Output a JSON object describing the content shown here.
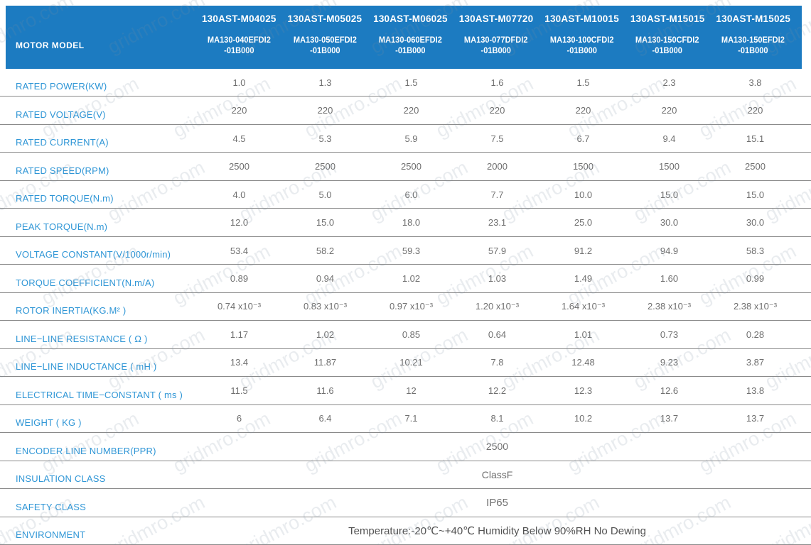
{
  "watermark": {
    "text": "gridmro.com"
  },
  "colors": {
    "header_bg": "#1c7bc1",
    "label_text": "#2f96d6",
    "value_text": "#6f6f6f",
    "grid_line": "#8a8a8a"
  },
  "header": {
    "row_label": "MOTOR MODEL",
    "columns": [
      {
        "model": "130AST-M04025",
        "code1": "MA130-040EFDI2",
        "code2": "-01B000"
      },
      {
        "model": "130AST-M05025",
        "code1": "MA130-050EFDI2",
        "code2": "-01B000"
      },
      {
        "model": "130AST-M06025",
        "code1": "MA130-060EFDI2",
        "code2": "-01B000"
      },
      {
        "model": "130AST-M07720",
        "code1": "MA130-077DFDI2",
        "code2": "-01B000"
      },
      {
        "model": "130AST-M10015",
        "code1": "MA130-100CFDI2",
        "code2": "-01B000"
      },
      {
        "model": "130AST-M15015",
        "code1": "MA130-150CFDI2",
        "code2": "-01B000"
      },
      {
        "model": "130AST-M15025",
        "code1": "MA130-150EFDI2",
        "code2": "-01B000"
      }
    ]
  },
  "rows": [
    {
      "label": "RATED POWER(KW)",
      "values": [
        "1.0",
        "1.3",
        "1.5",
        "1.6",
        "1.5",
        "2.3",
        "3.8"
      ]
    },
    {
      "label": "RATED VOLTAGE(V)",
      "values": [
        "220",
        "220",
        "220",
        "220",
        "220",
        "220",
        "220"
      ]
    },
    {
      "label": "RATED CURRENT(A)",
      "values": [
        "4.5",
        "5.3",
        "5.9",
        "7.5",
        "6.7",
        "9.4",
        "15.1"
      ]
    },
    {
      "label": "RATED SPEED(RPM)",
      "values": [
        "2500",
        "2500",
        "2500",
        "2000",
        "1500",
        "1500",
        "2500"
      ]
    },
    {
      "label": "RATED TORQUE(N.m)",
      "values": [
        "4.0",
        "5.0",
        "6.0",
        "7.7",
        "10.0",
        "15.0",
        "15.0"
      ]
    },
    {
      "label": "PEAK TORQUE(N.m)",
      "values": [
        "12.0",
        "15.0",
        "18.0",
        "23.1",
        "25.0",
        "30.0",
        "30.0"
      ]
    },
    {
      "label": "VOLTAGE CONSTANT(V/1000r/min)",
      "values": [
        "53.4",
        "58.2",
        "59.3",
        "57.9",
        "91.2",
        "94.9",
        "58.3"
      ]
    },
    {
      "label": "TORQUE COEFFICIENT(N.m/A)",
      "values": [
        "0.89",
        "0.94",
        "1.02",
        "1.03",
        "1.49",
        "1.60",
        "0.99"
      ]
    },
    {
      "label": "ROTOR INERTIA(KG.M² )",
      "values": [
        "0.74 x10⁻³",
        "0.83 x10⁻³",
        "0.97 x10⁻³",
        "1.20 x10⁻³",
        "1.64 x10⁻³",
        "2.38 x10⁻³",
        "2.38 x10⁻³"
      ]
    },
    {
      "label": "LINE−LINE RESISTANCE ( Ω )",
      "values": [
        "1.17",
        "1.02",
        "0.85",
        "0.64",
        "1.01",
        "0.73",
        "0.28"
      ]
    },
    {
      "label": "LINE−LINE INDUCTANCE ( mH )",
      "values": [
        "13.4",
        "11.87",
        "10.21",
        "7.8",
        "12.48",
        "9.23",
        "3.87"
      ]
    },
    {
      "label": "ELECTRICAL TIME−CONSTANT ( ms )",
      "values": [
        "11.5",
        "11.6",
        "12",
        "12.2",
        "12.3",
        "12.6",
        "13.8"
      ]
    },
    {
      "label": "WEIGHT ( KG )",
      "values": [
        "6",
        "6.4",
        "7.1",
        "8.1",
        "10.2",
        "13.7",
        "13.7"
      ]
    }
  ],
  "span_rows": [
    {
      "label": "ENCODER LINE NUMBER(PPR)",
      "value": "2500"
    },
    {
      "label": "INSULATION CLASS",
      "value": "ClassF"
    },
    {
      "label": "SAFETY CLASS",
      "value": "IP65"
    },
    {
      "label": "ENVIRONMENT",
      "value": "Temperature:-20℃~+40℃  Humidity Below 90%RH No Dewing"
    }
  ]
}
